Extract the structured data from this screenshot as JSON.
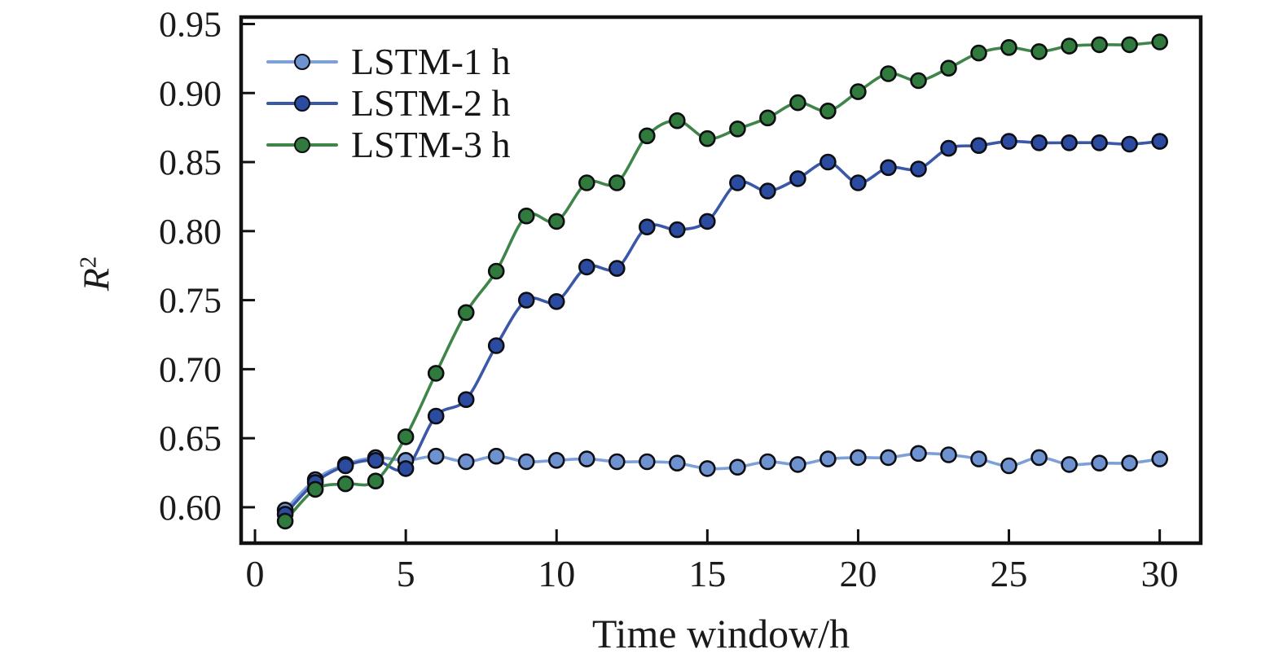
{
  "chart_data": {
    "type": "line",
    "title": "",
    "xlabel": "Time window/h",
    "ylabel": {
      "base": "R",
      "exponent": "2"
    },
    "x": [
      1,
      2,
      3,
      4,
      5,
      6,
      7,
      8,
      9,
      10,
      11,
      12,
      13,
      14,
      15,
      16,
      17,
      18,
      19,
      20,
      21,
      22,
      23,
      24,
      25,
      26,
      27,
      28,
      29,
      30
    ],
    "series": [
      {
        "name": "LSTM-1 h",
        "line_color": "#7da0d8",
        "marker_color": "#6d92cf",
        "values": [
          0.598,
          0.62,
          0.631,
          0.636,
          0.634,
          0.637,
          0.633,
          0.637,
          0.633,
          0.634,
          0.635,
          0.633,
          0.633,
          0.632,
          0.628,
          0.629,
          0.633,
          0.631,
          0.635,
          0.636,
          0.636,
          0.639,
          0.638,
          0.635,
          0.63,
          0.636,
          0.631,
          0.632,
          0.632,
          0.635
        ]
      },
      {
        "name": "LSTM-2 h",
        "line_color": "#3a57a8",
        "marker_color": "#2b4ba0",
        "values": [
          0.595,
          0.618,
          0.63,
          0.634,
          0.628,
          0.666,
          0.678,
          0.717,
          0.75,
          0.749,
          0.774,
          0.773,
          0.803,
          0.801,
          0.807,
          0.835,
          0.829,
          0.838,
          0.85,
          0.835,
          0.846,
          0.845,
          0.86,
          0.862,
          0.865,
          0.864,
          0.864,
          0.864,
          0.863,
          0.865
        ]
      },
      {
        "name": "LSTM-3 h",
        "line_color": "#3f8549",
        "marker_color": "#2f7a3c",
        "values": [
          0.59,
          0.613,
          0.617,
          0.619,
          0.651,
          0.697,
          0.741,
          0.771,
          0.811,
          0.807,
          0.835,
          0.835,
          0.869,
          0.88,
          0.867,
          0.874,
          0.882,
          0.893,
          0.887,
          0.901,
          0.914,
          0.909,
          0.918,
          0.929,
          0.933,
          0.93,
          0.934,
          0.935,
          0.935,
          0.937
        ]
      }
    ],
    "axes": {
      "xlim": [
        -0.46,
        31.36
      ],
      "ylim": [
        0.574,
        0.955
      ],
      "xticks": {
        "values": [
          0,
          5,
          10,
          15,
          20,
          25,
          30
        ],
        "labels": [
          "0",
          "5",
          "10",
          "15",
          "20",
          "25",
          "30"
        ]
      },
      "yticks": {
        "values": [
          0.6,
          0.65,
          0.7,
          0.75,
          0.8,
          0.85,
          0.9,
          0.95
        ],
        "labels": [
          "0.60",
          "0.65",
          "0.70",
          "0.75",
          "0.80",
          "0.85",
          "0.90",
          "0.95"
        ]
      },
      "grid": false,
      "legend_position": "upper-left-inside"
    },
    "marker": {
      "edge_color": "#0d0d12"
    },
    "axis_color": "#111111",
    "text_color": "#1a1a1a"
  }
}
